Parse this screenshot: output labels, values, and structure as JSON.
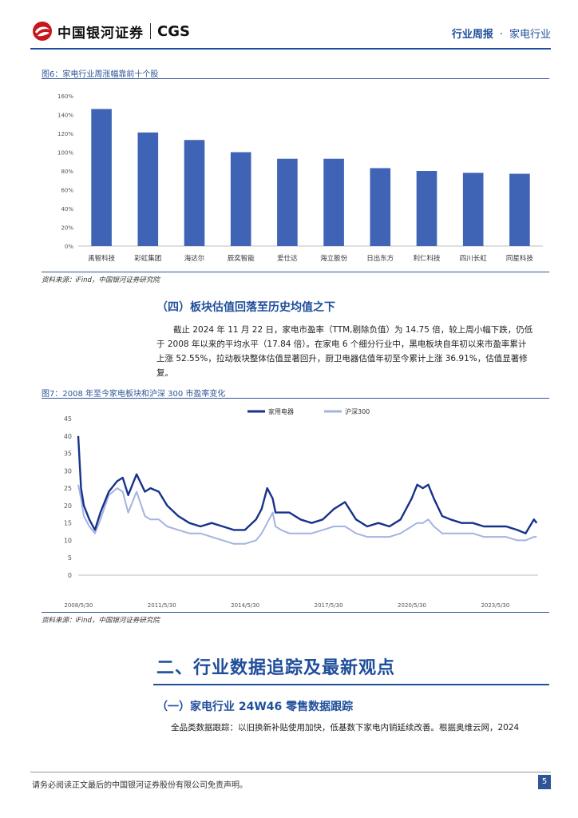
{
  "header": {
    "brand_cn": "中国银河证券",
    "brand_en": "CGS",
    "report_type": "行业周报",
    "separator": "·",
    "industry": "家电行业"
  },
  "figure6": {
    "title": "图6：家电行业周涨幅靠前十个股",
    "source": "资料来源：iFind，中国银河证券研究院"
  },
  "section4": {
    "heading": "（四）板块估值回落至历史均值之下",
    "paragraph_lines": [
      "截止 2024 年 11 月 22 日，家电市盈率（TTM,剔除负值）为 14.75 倍，较上周小幅下跌，仍低",
      "于 2008 年以来的平均水平（17.84 倍）。在家电 6 个细分行业中，黑电板块自年初以来市盈率累计",
      "上涨 52.55%，拉动板块整体估值显著回升，厨卫电器估值年初至今累计上涨 36.91%，估值显著修",
      "复。"
    ]
  },
  "figure7": {
    "title": "图7：2008 年至今家电板块和沪深 300 市盈率变化",
    "source": "资料来源：iFind，中国银河证券研究院"
  },
  "section2": {
    "heading": "二、行业数据追踪及最新观点"
  },
  "section2_1": {
    "heading": "（一）家电行业 24W46 零售数据跟踪",
    "paragraph": "全品类数据跟踪：以旧换新补贴使用加快，低基数下家电内销延续改善。根据奥维云网，2024"
  },
  "footer": {
    "disclaimer": "请务必阅读正文最后的中国银河证券股份有限公司免责声明。",
    "page": "5"
  },
  "chart_data": [
    {
      "type": "bar",
      "title": "图6：家电行业周涨幅靠前十个股",
      "categories": [
        "禹智科技",
        "彩虹集团",
        "海达尔",
        "辰奕智能",
        "爱仕达",
        "海立股份",
        "日出东方",
        "利仁科技",
        "四川长虹",
        "同星科技"
      ],
      "values": [
        146,
        121,
        113,
        100,
        93,
        93,
        83,
        80,
        78,
        77
      ],
      "ylim": [
        0,
        160
      ],
      "yticks": [
        "0%",
        "20%",
        "40%",
        "60%",
        "80%",
        "100%",
        "120%",
        "140%",
        "160%"
      ],
      "colors": {
        "bar": "#3f63b5"
      }
    },
    {
      "type": "line",
      "title": "图7：2008 年至今家电板块和沪深 300 市盈率变化",
      "xlabels": [
        "2008/5/30",
        "2011/5/30",
        "2014/5/30",
        "2017/5/30",
        "2020/5/30",
        "2023/5/30"
      ],
      "ylim": [
        0,
        45
      ],
      "yticks": [
        "0",
        "5",
        "10",
        "15",
        "20",
        "25",
        "30",
        "35",
        "40",
        "45"
      ],
      "legend_position": "top-center",
      "series": [
        {
          "name": "家用电器",
          "color": "#17328a",
          "x": [
            2008.4,
            2008.5,
            2008.6,
            2008.8,
            2009.0,
            2009.2,
            2009.5,
            2009.8,
            2010.0,
            2010.2,
            2010.5,
            2010.8,
            2011.0,
            2011.3,
            2011.6,
            2012.0,
            2012.4,
            2012.8,
            2013.2,
            2013.6,
            2014.0,
            2014.4,
            2014.8,
            2015.0,
            2015.2,
            2015.4,
            2015.5,
            2015.7,
            2016.0,
            2016.4,
            2016.8,
            2017.2,
            2017.6,
            2018.0,
            2018.4,
            2018.8,
            2019.2,
            2019.6,
            2020.0,
            2020.4,
            2020.6,
            2020.8,
            2021.0,
            2021.2,
            2021.5,
            2021.8,
            2022.2,
            2022.6,
            2023.0,
            2023.4,
            2023.8,
            2024.2,
            2024.5,
            2024.8,
            2024.9
          ],
          "y": [
            40,
            25,
            20,
            16,
            13,
            18,
            24,
            27,
            28,
            23,
            29,
            24,
            25,
            24,
            20,
            17,
            15,
            14,
            15,
            14,
            13,
            13,
            16,
            19,
            25,
            22,
            18,
            18,
            18,
            16,
            15,
            16,
            19,
            21,
            16,
            14,
            15,
            14,
            16,
            22,
            26,
            25,
            26,
            22,
            17,
            16,
            15,
            15,
            14,
            14,
            14,
            13,
            12,
            16,
            15
          ]
        },
        {
          "name": "沪深300",
          "color": "#a3b4e0",
          "x": [
            2008.4,
            2008.5,
            2008.6,
            2008.8,
            2009.0,
            2009.2,
            2009.5,
            2009.8,
            2010.0,
            2010.2,
            2010.5,
            2010.8,
            2011.0,
            2011.3,
            2011.6,
            2012.0,
            2012.4,
            2012.8,
            2013.2,
            2013.6,
            2014.0,
            2014.4,
            2014.8,
            2015.0,
            2015.2,
            2015.4,
            2015.5,
            2015.7,
            2016.0,
            2016.4,
            2016.8,
            2017.2,
            2017.6,
            2018.0,
            2018.4,
            2018.8,
            2019.2,
            2019.6,
            2020.0,
            2020.4,
            2020.6,
            2020.8,
            2021.0,
            2021.2,
            2021.5,
            2021.8,
            2022.2,
            2022.6,
            2023.0,
            2023.4,
            2023.8,
            2024.2,
            2024.5,
            2024.8,
            2024.9
          ],
          "y": [
            26,
            22,
            17,
            14,
            12,
            16,
            23,
            25,
            24,
            18,
            24,
            17,
            16,
            16,
            14,
            13,
            12,
            12,
            11,
            10,
            9,
            9,
            10,
            12,
            15,
            18,
            14,
            13,
            12,
            12,
            12,
            13,
            14,
            14,
            12,
            11,
            11,
            11,
            12,
            14,
            15,
            15,
            16,
            14,
            12,
            12,
            12,
            12,
            11,
            11,
            11,
            10,
            10,
            11,
            11
          ]
        }
      ]
    }
  ]
}
